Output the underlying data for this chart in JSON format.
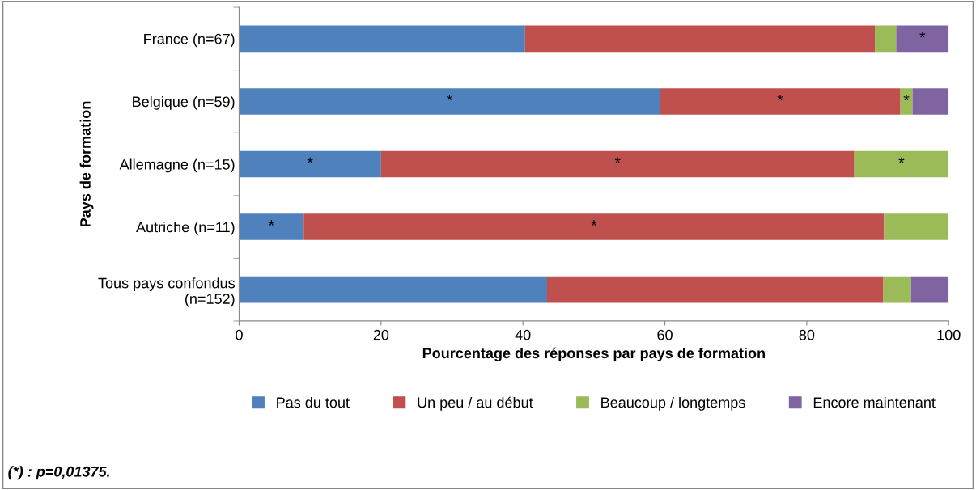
{
  "chart_data": {
    "type": "bar",
    "orientation": "horizontal",
    "stacked": true,
    "ylabel": "Pays de formation",
    "xlabel": "Pourcentage des réponses par pays de formation",
    "categories": [
      "France (n=67)",
      "Belgique (n=59)",
      "Allemagne (n=15)",
      "Autriche (n=11)",
      "Tous pays confondus\n(n=152)"
    ],
    "series": [
      {
        "name": "Pas du tout",
        "color": "#4f81bd",
        "values": [
          40.3,
          59.3,
          20.0,
          9.1,
          43.4
        ],
        "value_labels": [
          null,
          "*",
          "*",
          "*",
          null
        ]
      },
      {
        "name": "Un peu / au début",
        "color": "#c0504d",
        "values": [
          49.3,
          33.9,
          66.7,
          81.8,
          47.4
        ],
        "value_labels": [
          null,
          "*",
          "*",
          "*",
          null
        ]
      },
      {
        "name": "Beaucoup / longtemps",
        "color": "#9bbb59",
        "values": [
          3.0,
          1.7,
          13.3,
          9.1,
          3.9
        ],
        "value_labels": [
          null,
          "*",
          "*",
          null,
          null
        ]
      },
      {
        "name": "Encore maintenant",
        "color": "#8064a2",
        "values": [
          7.4,
          5.1,
          0,
          0,
          5.3
        ],
        "value_labels": [
          "*",
          null,
          null,
          null,
          null
        ]
      }
    ],
    "xlim": [
      0,
      100
    ],
    "xticks": [
      0,
      20,
      40,
      60,
      80,
      100
    ],
    "grid": false,
    "legend": "bottom",
    "annotations": [
      "(*) : p=0,01375."
    ]
  }
}
